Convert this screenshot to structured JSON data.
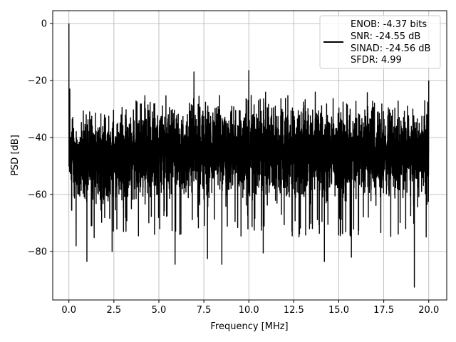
{
  "chart_data": {
    "type": "line",
    "xlabel": "Frequency [MHz]",
    "ylabel": "PSD [dB]",
    "xlim": [
      -0.9,
      21.0
    ],
    "ylim": [
      -97.0,
      4.5
    ],
    "xticks": [
      0.0,
      2.5,
      5.0,
      7.5,
      10.0,
      12.5,
      15.0,
      17.5,
      20.0
    ],
    "xtick_labels": [
      "0.0",
      "2.5",
      "5.0",
      "7.5",
      "10.0",
      "12.5",
      "15.0",
      "17.5",
      "20.0"
    ],
    "yticks": [
      0,
      -20,
      -40,
      -60,
      -80
    ],
    "ytick_labels": [
      "0",
      "−20",
      "−40",
      "−60",
      "−80"
    ],
    "grid": true,
    "legend_position": "top-right",
    "series": [
      {
        "legend_lines": [
          "ENOB: -4.37 bits",
          "SNR: -24.55 dB",
          "SINAD: -24.56 dB",
          "SFDR: 4.99"
        ],
        "color": "#000000",
        "description": "Dense noise-floor PSD from 0 to 20 MHz",
        "x_range": [
          0.0,
          20.0
        ],
        "upper_envelope": {
          "x": [
            0.0,
            0.5,
            1.0,
            2.0,
            3.0,
            4.0,
            5.0,
            6.0,
            7.0,
            8.0,
            9.0,
            10.0,
            11.0,
            12.0,
            13.0,
            14.0,
            15.0,
            16.0,
            17.0,
            18.0,
            19.0,
            20.0
          ],
          "y": [
            -29,
            -28,
            -27,
            -27,
            -25,
            -23,
            -22,
            -22,
            -22,
            -22,
            -22,
            -22,
            -22,
            -22,
            -22,
            -22,
            -23,
            -23,
            -23,
            -24,
            -24,
            -24
          ]
        },
        "lower_envelope": {
          "x": [
            0.0,
            0.5,
            1.0,
            2.0,
            3.0,
            4.0,
            5.0,
            6.0,
            7.0,
            8.0,
            9.0,
            10.0,
            11.0,
            12.0,
            13.0,
            14.0,
            15.0,
            16.0,
            17.0,
            18.0,
            19.0,
            20.0
          ],
          "y": [
            -62,
            -66,
            -68,
            -68,
            -68,
            -67,
            -67,
            -67,
            -67,
            -67,
            -67,
            -67,
            -67,
            -67,
            -67,
            -67,
            -67,
            -67,
            -67,
            -67,
            -67,
            -67
          ]
        },
        "peaks": [
          {
            "x": 0.0,
            "y": 0
          },
          {
            "x": 0.05,
            "y": -23
          },
          {
            "x": 6.95,
            "y": -17
          },
          {
            "x": 10.0,
            "y": -16.5
          },
          {
            "x": 20.0,
            "y": -20
          }
        ],
        "dips": [
          {
            "x": 0.4,
            "y": -78
          },
          {
            "x": 1.0,
            "y": -83.5
          },
          {
            "x": 2.4,
            "y": -80
          },
          {
            "x": 5.9,
            "y": -84.5
          },
          {
            "x": 7.7,
            "y": -82.5
          },
          {
            "x": 8.5,
            "y": -84.5
          },
          {
            "x": 10.8,
            "y": -80.5
          },
          {
            "x": 14.2,
            "y": -83.5
          },
          {
            "x": 15.7,
            "y": -82
          },
          {
            "x": 19.2,
            "y": -92.5
          }
        ]
      }
    ]
  }
}
